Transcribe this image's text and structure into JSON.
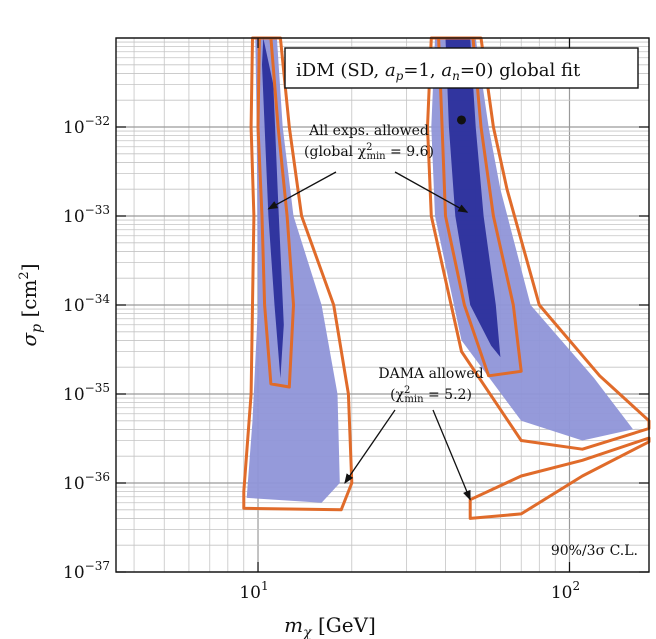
{
  "chart_data": {
    "type": "contour",
    "title": "iDM (SD, a_p=1, a_n=0) global fit",
    "xlabel": "m_χ [GeV]",
    "ylabel": "σ_p [cm²]",
    "x_scale": "log",
    "y_scale": "log",
    "xlim": [
      3.5,
      180
    ],
    "ylim": [
      1e-37,
      1e-31
    ],
    "grid": true,
    "x_tick_labels": [
      {
        "value": 10,
        "base": "10",
        "exp": "1"
      },
      {
        "value": 100,
        "base": "10",
        "exp": "2"
      }
    ],
    "y_tick_labels": [
      {
        "value": 1e-32,
        "base": "10",
        "exp": "−32"
      },
      {
        "value": 1e-33,
        "base": "10",
        "exp": "−33"
      },
      {
        "value": 1e-34,
        "base": "10",
        "exp": "−34"
      },
      {
        "value": 1e-35,
        "base": "10",
        "exp": "−35"
      },
      {
        "value": 1e-36,
        "base": "10",
        "exp": "−36"
      },
      {
        "value": 1e-37,
        "base": "10",
        "exp": "−37"
      }
    ],
    "best_fit_point": {
      "x": 45,
      "y": 1.2e-32
    },
    "regions": [
      {
        "name": "low-mass 90% C.L.",
        "color": "#2b2f9c",
        "points": [
          [
            10.4,
            1e-31
          ],
          [
            11.2,
            3e-32
          ],
          [
            11.6,
            1.5e-33
          ],
          [
            12.1,
            6e-35
          ],
          [
            11.8,
            1.5e-35
          ],
          [
            11.3,
            1e-34
          ],
          [
            10.8,
            1e-33
          ],
          [
            10.3,
            5e-32
          ]
        ]
      },
      {
        "name": "low-mass 3σ C.L.",
        "color": "#8f95d8",
        "points": [
          [
            9.8,
            1e-31
          ],
          [
            11.5,
            1e-31
          ],
          [
            12.0,
            1e-32
          ],
          [
            13.0,
            1e-33
          ],
          [
            16.0,
            1e-34
          ],
          [
            18.0,
            1e-35
          ],
          [
            18.3,
            1e-36
          ],
          [
            16.0,
            6e-37
          ],
          [
            9.2,
            6.8e-37
          ],
          [
            9.6,
            5e-36
          ],
          [
            10.0,
            1e-34
          ],
          [
            9.9,
            1e-32
          ]
        ]
      },
      {
        "name": "high-mass 90% C.L.",
        "color": "#2b2f9c",
        "points": [
          [
            40.0,
            1e-31
          ],
          [
            48.0,
            1e-31
          ],
          [
            50.0,
            1e-32
          ],
          [
            53.0,
            1e-33
          ],
          [
            58.0,
            1e-34
          ],
          [
            60.0,
            2.6e-35
          ],
          [
            56.0,
            3.5e-35
          ],
          [
            48.0,
            1e-34
          ],
          [
            43.0,
            1e-33
          ],
          [
            41.0,
            1e-32
          ]
        ]
      },
      {
        "name": "high-mass 3σ C.L.",
        "color": "#8f95d8",
        "points": [
          [
            37.0,
            1e-31
          ],
          [
            50.0,
            1e-31
          ],
          [
            55.0,
            1e-32
          ],
          [
            60.0,
            2e-33
          ],
          [
            75.0,
            1e-34
          ],
          [
            120.0,
            1.5e-35
          ],
          [
            160.0,
            4e-36
          ],
          [
            175.0,
            4.3e-36
          ],
          [
            110.0,
            3e-36
          ],
          [
            70.0,
            5e-36
          ],
          [
            45.0,
            4e-35
          ],
          [
            37.0,
            1e-33
          ],
          [
            36.0,
            1e-32
          ]
        ]
      }
    ],
    "contours": [
      {
        "name": "low-mass DAMA allowed",
        "color": "#e06b2a",
        "points": [
          [
            9.6,
            1e-31
          ],
          [
            11.8,
            1e-31
          ],
          [
            12.6,
            1e-32
          ],
          [
            13.8,
            1e-33
          ],
          [
            17.5,
            1e-34
          ],
          [
            19.5,
            1e-35
          ],
          [
            20.0,
            1e-36
          ],
          [
            18.5,
            5e-37
          ],
          [
            9.0,
            5.2e-37
          ],
          [
            9.0,
            8e-37
          ],
          [
            9.5,
            1e-35
          ],
          [
            9.7,
            1e-33
          ],
          [
            9.5,
            1e-32
          ]
        ]
      },
      {
        "name": "low-mass inner",
        "color": "#e06b2a",
        "points": [
          [
            10.1,
            1e-31
          ],
          [
            11.0,
            1e-31
          ],
          [
            11.6,
            1e-32
          ],
          [
            12.4,
            1e-33
          ],
          [
            13.0,
            1e-34
          ],
          [
            12.6,
            1.2e-35
          ],
          [
            11.0,
            1.3e-35
          ],
          [
            10.5,
            1e-34
          ],
          [
            10.3,
            1e-33
          ],
          [
            10.0,
            1e-32
          ]
        ]
      },
      {
        "name": "high-mass DAMA allowed",
        "color": "#e06b2a",
        "points": [
          [
            36.0,
            1e-31
          ],
          [
            52.0,
            1e-31
          ],
          [
            57.0,
            1e-32
          ],
          [
            63.0,
            2e-33
          ],
          [
            80.0,
            1e-34
          ],
          [
            125.0,
            1.6e-35
          ],
          [
            180.0,
            5e-36
          ],
          [
            180.0,
            4.1e-36
          ],
          [
            110.0,
            2.4e-36
          ],
          [
            70.0,
            3e-36
          ],
          [
            45.0,
            3e-35
          ],
          [
            36.0,
            1e-33
          ],
          [
            35.0,
            1e-32
          ]
        ]
      },
      {
        "name": "high-mass inner",
        "color": "#e06b2a",
        "points": [
          [
            38.0,
            1e-31
          ],
          [
            49.0,
            1e-31
          ],
          [
            52.0,
            1e-32
          ],
          [
            57.0,
            1e-33
          ],
          [
            66.0,
            1e-34
          ],
          [
            70.0,
            1.8e-35
          ],
          [
            55.0,
            1.6e-35
          ],
          [
            46.0,
            1e-34
          ],
          [
            40.0,
            1e-33
          ],
          [
            39.0,
            1e-32
          ]
        ]
      },
      {
        "name": "DAMA tail",
        "color": "#e06b2a",
        "points": [
          [
            48.0,
            6.5e-37
          ],
          [
            70.0,
            1.2e-36
          ],
          [
            110.0,
            1.8e-36
          ],
          [
            180.0,
            3.2e-36
          ],
          [
            180.0,
            2.9e-36
          ],
          [
            110.0,
            1.2e-36
          ],
          [
            70.0,
            4.5e-37
          ],
          [
            48.0,
            4e-37
          ]
        ]
      }
    ],
    "annotations": [
      {
        "id": "all-allowed",
        "lines": [
          "All exps. allowed",
          "(global χ²min = 9.6)"
        ],
        "line1": "All exps. allowed",
        "line2_prefix": "(global χ",
        "sup": "2",
        "sub": "min",
        "line2_suffix": " = 9.6)",
        "arrows_to": [
          [
            10.8,
            1.2e-33
          ],
          [
            47,
            1.1e-33
          ]
        ]
      },
      {
        "id": "dama-allowed",
        "lines": [
          "DAMA allowed",
          "(χ²min = 5.2)"
        ],
        "line1": "DAMA allowed",
        "line2_prefix": "(χ",
        "sup": "2",
        "sub": "min",
        "line2_suffix": " = 5.2)",
        "arrows_to": [
          [
            19,
            1e-36
          ],
          [
            48,
            6.5e-37
          ]
        ]
      }
    ],
    "cl_label": "90%/3σ C.L.",
    "legend_title_parts": {
      "prefix": "iDM (SD, ",
      "a": "a",
      "p_sub": "p",
      "mid1": "=1, ",
      "n_sub": "n",
      "mid2": "=0) global fit"
    },
    "xlabel_parts": {
      "m": "m",
      "sub": "χ",
      "unit": " [GeV]"
    },
    "ylabel_parts": {
      "s": "σ",
      "sub": "p",
      "unit": " [cm",
      "sup": "2",
      "close": "]"
    }
  }
}
